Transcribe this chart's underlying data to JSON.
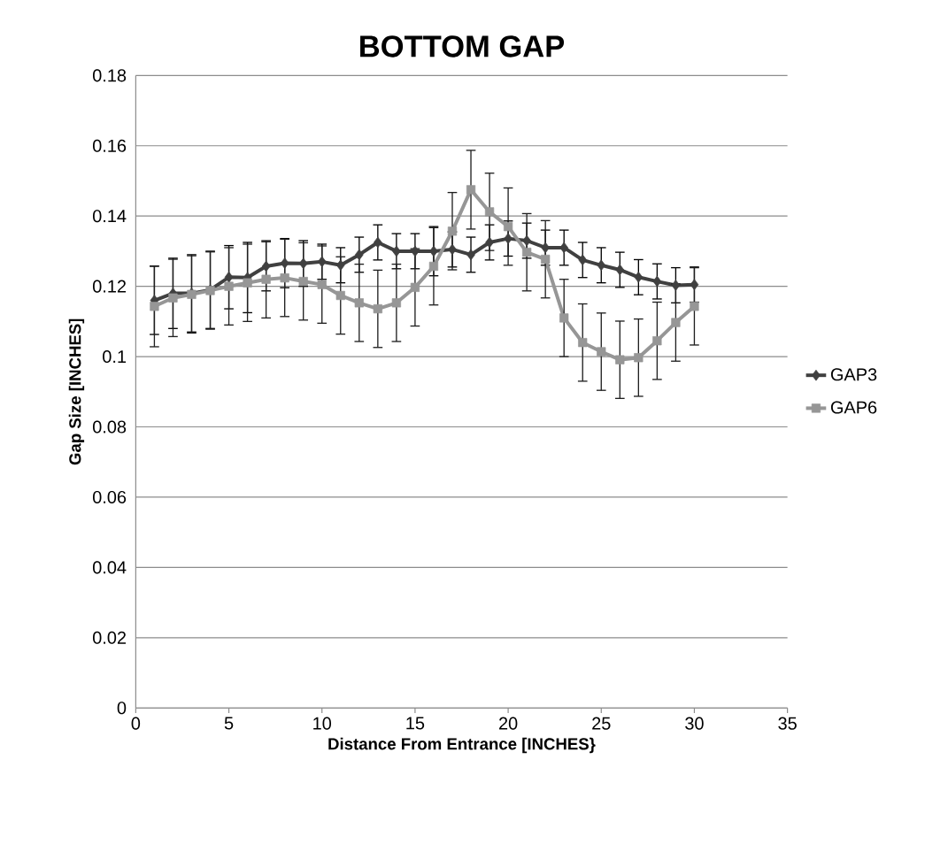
{
  "chart_data": {
    "type": "line",
    "title": "BOTTOM GAP",
    "xlabel": "Distance From Entrance [INCHES}",
    "ylabel": "Gap Size [INCHES]",
    "x": [
      1,
      2,
      3,
      4,
      5,
      6,
      7,
      8,
      9,
      10,
      11,
      12,
      13,
      14,
      15,
      16,
      17,
      18,
      19,
      20,
      21,
      22,
      23,
      24,
      25,
      26,
      27,
      28,
      29,
      30
    ],
    "series": [
      {
        "name": "GAP3",
        "color": "#404040",
        "marker": "diamond",
        "values": [
          0.116,
          0.118,
          0.118,
          0.119,
          0.1226,
          0.1225,
          0.1257,
          0.1266,
          0.1265,
          0.127,
          0.126,
          0.129,
          0.1325,
          0.13,
          0.13,
          0.13,
          0.1305,
          0.129,
          0.1325,
          0.1336,
          0.133,
          0.131,
          0.131,
          0.1275,
          0.126,
          0.1247,
          0.1226,
          0.1214,
          0.1203,
          0.1205
        ],
        "errors": [
          0.0097,
          0.01,
          0.011,
          0.011,
          0.009,
          0.01,
          0.007,
          0.007,
          0.0065,
          0.005,
          0.005,
          0.005,
          0.005,
          0.005,
          0.005,
          0.007,
          0.005,
          0.005,
          0.005,
          0.005,
          0.005,
          0.005,
          0.005,
          0.005,
          0.005,
          0.005,
          0.005,
          0.005,
          0.005,
          0.005
        ]
      },
      {
        "name": "GAP6",
        "color": "#969696",
        "marker": "square",
        "values": [
          0.1143,
          0.1167,
          0.1177,
          0.1188,
          0.12,
          0.121,
          0.122,
          0.1224,
          0.1214,
          0.1205,
          0.1174,
          0.1153,
          0.1136,
          0.1153,
          0.1197,
          0.1257,
          0.1357,
          0.1475,
          0.1412,
          0.137,
          0.1297,
          0.1277,
          0.111,
          0.104,
          0.1014,
          0.0991,
          0.0997,
          0.1045,
          0.1097,
          0.1143
        ],
        "errors": [
          0.0115,
          0.011,
          0.011,
          0.011,
          0.011,
          0.011,
          0.011,
          0.011,
          0.011,
          0.011,
          0.011,
          0.011,
          0.011,
          0.011,
          0.011,
          0.011,
          0.011,
          0.0112,
          0.011,
          0.011,
          0.011,
          0.011,
          0.011,
          0.011,
          0.011,
          0.011,
          0.011,
          0.011,
          0.011,
          0.011
        ]
      }
    ],
    "xlim": [
      0,
      35
    ],
    "xticks": [
      0,
      5,
      10,
      15,
      20,
      25,
      30,
      35
    ],
    "ylim": [
      0,
      0.18
    ],
    "yticks": [
      0,
      0.02,
      0.04,
      0.06,
      0.08,
      {
        "value": 0.1,
        "label": "0.1"
      },
      0.12,
      0.14,
      0.16,
      0.18
    ],
    "grid": "y",
    "legend": "right",
    "line_style": "solid"
  }
}
